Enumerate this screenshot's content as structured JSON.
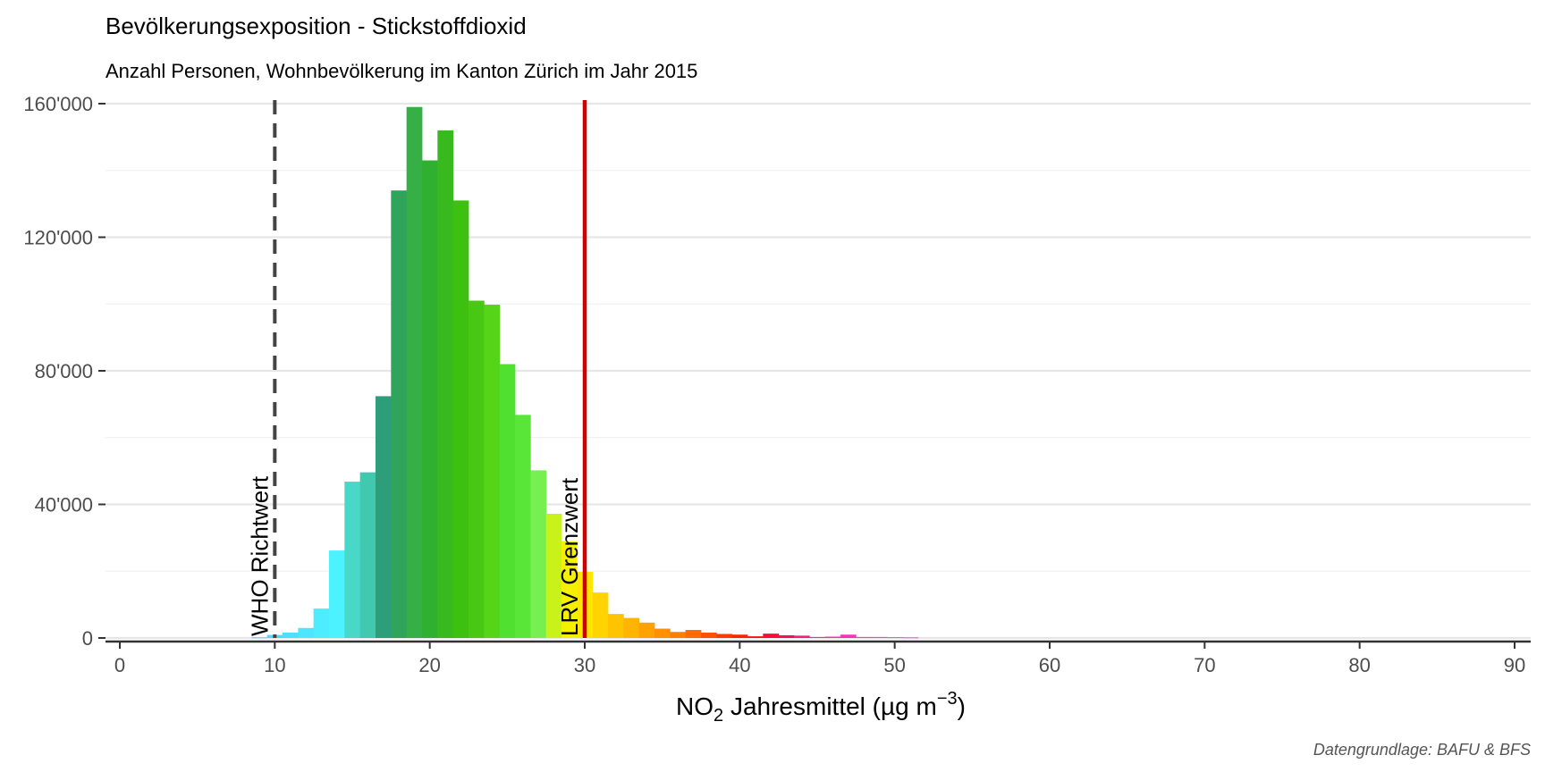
{
  "chart_data": {
    "type": "bar",
    "title": "Bevölkerungsexposition - Stickstoffdioxid",
    "subtitle": "Anzahl Personen, Wohnbevölkerung im Kanton Zürich im Jahr 2015",
    "xlabel": {
      "base": "NO",
      "sub": "2",
      "mid": " Jahresmittel (µg m",
      "sup": "−3",
      "end": ")"
    },
    "ylabel": "",
    "caption": "Datengrundlage: BAFU & BFS",
    "xlim": [
      0,
      90
    ],
    "ylim": [
      0,
      160000
    ],
    "x_ticks": [
      0,
      10,
      20,
      30,
      40,
      50,
      60,
      70,
      80,
      90
    ],
    "y_ticks": [
      {
        "value": 0,
        "label": "0"
      },
      {
        "value": 40000,
        "label": "40'000"
      },
      {
        "value": 80000,
        "label": "80'000"
      },
      {
        "value": 120000,
        "label": "120'000"
      },
      {
        "value": 160000,
        "label": "160'000"
      }
    ],
    "grid": true,
    "bin_width": 1,
    "bars": [
      {
        "x": 9,
        "value": 200,
        "color": "#4dd9ff"
      },
      {
        "x": 10,
        "value": 900,
        "color": "#4dd9ff"
      },
      {
        "x": 11,
        "value": 1600,
        "color": "#4ddfff"
      },
      {
        "x": 12,
        "value": 3000,
        "color": "#4de5ff"
      },
      {
        "x": 13,
        "value": 8800,
        "color": "#4decff"
      },
      {
        "x": 14,
        "value": 26200,
        "color": "#4df2ff"
      },
      {
        "x": 15,
        "value": 46800,
        "color": "#48d8c8"
      },
      {
        "x": 16,
        "value": 49600,
        "color": "#42c8ae"
      },
      {
        "x": 17,
        "value": 72400,
        "color": "#2e9e7a"
      },
      {
        "x": 18,
        "value": 134000,
        "color": "#2fa45a"
      },
      {
        "x": 19,
        "value": 159000,
        "color": "#36b046"
      },
      {
        "x": 20,
        "value": 143000,
        "color": "#30b030"
      },
      {
        "x": 21,
        "value": 152000,
        "color": "#38ba1e"
      },
      {
        "x": 22,
        "value": 131000,
        "color": "#3ec010"
      },
      {
        "x": 23,
        "value": 101000,
        "color": "#48c812"
      },
      {
        "x": 24,
        "value": 99800,
        "color": "#55d418"
      },
      {
        "x": 25,
        "value": 82000,
        "color": "#50e030"
      },
      {
        "x": 26,
        "value": 66800,
        "color": "#5ae638"
      },
      {
        "x": 27,
        "value": 50200,
        "color": "#76f050"
      },
      {
        "x": 28,
        "value": 37200,
        "color": "#c8f218"
      },
      {
        "x": 29,
        "value": 29000,
        "color": "#f5f000"
      },
      {
        "x": 30,
        "value": 19800,
        "color": "#ffe600"
      },
      {
        "x": 31,
        "value": 13600,
        "color": "#ffd400"
      },
      {
        "x": 32,
        "value": 7200,
        "color": "#ffc400"
      },
      {
        "x": 33,
        "value": 6000,
        "color": "#ffb400"
      },
      {
        "x": 34,
        "value": 4600,
        "color": "#ffa200"
      },
      {
        "x": 35,
        "value": 2800,
        "color": "#ff9000"
      },
      {
        "x": 36,
        "value": 1800,
        "color": "#ff7d00"
      },
      {
        "x": 37,
        "value": 2400,
        "color": "#ff6a00"
      },
      {
        "x": 38,
        "value": 1600,
        "color": "#ff5000"
      },
      {
        "x": 39,
        "value": 1200,
        "color": "#ff3a00"
      },
      {
        "x": 40,
        "value": 1000,
        "color": "#ff2400"
      },
      {
        "x": 41,
        "value": 500,
        "color": "#ff1010"
      },
      {
        "x": 42,
        "value": 1300,
        "color": "#ff0a3a"
      },
      {
        "x": 43,
        "value": 800,
        "color": "#ff0a5a"
      },
      {
        "x": 44,
        "value": 700,
        "color": "#ff1a80"
      },
      {
        "x": 45,
        "value": 300,
        "color": "#ff2a9a"
      },
      {
        "x": 46,
        "value": 400,
        "color": "#ff30b0"
      },
      {
        "x": 47,
        "value": 1000,
        "color": "#ff30c0"
      },
      {
        "x": 48,
        "value": 300,
        "color": "#ff38cc"
      },
      {
        "x": 49,
        "value": 300,
        "color": "#ff3ed6"
      },
      {
        "x": 50,
        "value": 250,
        "color": "#ff45df"
      },
      {
        "x": 51,
        "value": 200,
        "color": "#ff4ce6"
      }
    ],
    "reference_lines": [
      {
        "x": 10,
        "label": "WHO Richtwert",
        "style": "dashed",
        "color": "#444444"
      },
      {
        "x": 30,
        "label": "LRV Grenzwert",
        "style": "solid",
        "color": "#cc0000"
      }
    ]
  }
}
